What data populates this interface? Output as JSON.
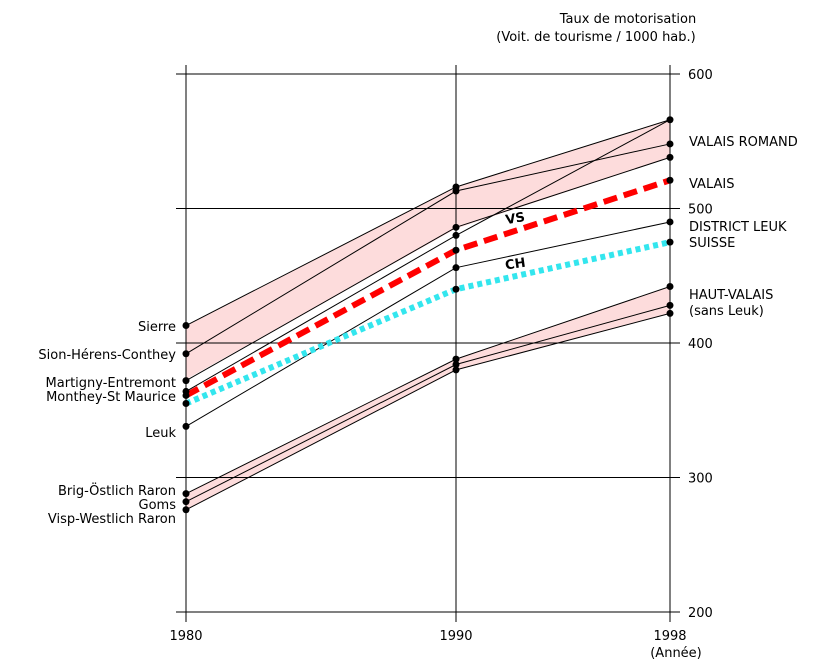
{
  "chart_data": {
    "type": "line",
    "title": [
      "Taux de motorisation",
      "(Voit. de tourisme / 1000 hab.)"
    ],
    "x_unit": "(Année)",
    "x_ticks": [
      1980,
      1990,
      1998
    ],
    "y_ticks": [
      200,
      300,
      400,
      500,
      600
    ],
    "xlim": [
      1980,
      1998
    ],
    "ylim": [
      200,
      600
    ],
    "grid": true,
    "bands": [
      {
        "name": "VALAIS ROMAND",
        "upper": [
          413,
          516,
          566
        ],
        "lower": [
          373,
          485,
          538
        ],
        "color": "#fddcdc"
      },
      {
        "name": "HAUT-VALAIS",
        "upper": [
          288,
          388,
          442
        ],
        "lower": [
          276,
          380,
          422
        ],
        "color": "#fddcdc"
      }
    ],
    "series": [
      {
        "name": "Sierre",
        "values": [
          413,
          516,
          566
        ]
      },
      {
        "name": "Sion-Hérens-Conthey",
        "values": [
          392,
          513,
          548
        ]
      },
      {
        "name": "Martigny-Entremont",
        "values": [
          372,
          486,
          538
        ]
      },
      {
        "name": "Monthey-St Maurice",
        "values": [
          364,
          480,
          566
        ]
      },
      {
        "name": "Leuk",
        "values": [
          338,
          456,
          490
        ]
      },
      {
        "name": "Brig-Östlich Raron",
        "values": [
          288,
          388,
          442
        ]
      },
      {
        "name": "Goms",
        "values": [
          282,
          384,
          428
        ]
      },
      {
        "name": "Visp-Westlich Raron",
        "values": [
          276,
          380,
          422
        ]
      }
    ],
    "highlight_series": [
      {
        "name": "VS",
        "values": [
          361,
          469,
          521
        ],
        "color": "#ff0000",
        "style": "dashed"
      },
      {
        "name": "CH",
        "values": [
          355,
          440,
          475
        ],
        "color": "#33e6ee",
        "style": "dotted"
      }
    ],
    "left_labels": [
      "Sierre",
      "Sion-Hérens-Conthey",
      "Martigny-Entremont",
      "Monthey-St Maurice",
      "Leuk",
      "Brig-Östlich Raron",
      "Goms",
      "Visp-Westlich Raron"
    ],
    "right_labels": [
      {
        "text": "VALAIS ROMAND",
        "value": 566
      },
      {
        "text": "VALAIS",
        "value": 521
      },
      {
        "text": "DISTRICT LEUK",
        "value": 490
      },
      {
        "text": "SUISSE",
        "value": 475
      },
      {
        "text": "HAUT-VALAIS",
        "value": 442
      },
      {
        "text": "(sans Leuk)",
        "value": 442
      }
    ],
    "right_dots": [
      566,
      548,
      538,
      521,
      490,
      475,
      442,
      428,
      422
    ]
  }
}
